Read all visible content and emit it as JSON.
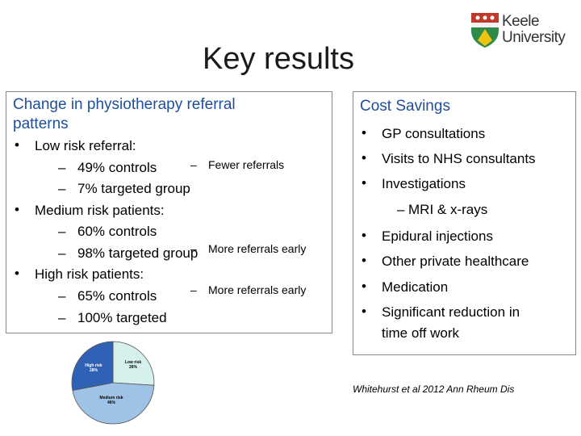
{
  "slide": {
    "title": "Key results",
    "logo": {
      "line1": "Keele",
      "line2": "University"
    }
  },
  "left_panel": {
    "heading_line1": "Change in physiotherapy referral",
    "heading_line2": "patterns",
    "items": [
      {
        "bullet": "•",
        "text": "Low risk referral:"
      },
      {
        "dash": "–",
        "text": "49% controls"
      },
      {
        "dash": "–",
        "text": "7% targeted group"
      },
      {
        "bullet": "•",
        "text": "Medium risk patients:"
      },
      {
        "dash": "–",
        "text": "60% controls"
      },
      {
        "dash": "–",
        "text": "98% targeted group"
      },
      {
        "bullet": "•",
        "text": "High risk patients:"
      },
      {
        "dash": "–",
        "text": "65% controls"
      },
      {
        "dash": "–",
        "text": "100% targeted"
      }
    ],
    "notes": [
      {
        "dash": "–",
        "text": "Fewer referrals"
      },
      {
        "dash": "–",
        "text": "More referrals early"
      },
      {
        "dash": "–",
        "text": "More referrals early"
      }
    ]
  },
  "right_panel": {
    "heading": "Cost Savings",
    "items": [
      {
        "bullet": "•",
        "text": "GP consultations"
      },
      {
        "bullet": "•",
        "text": "Visits to NHS consultants"
      },
      {
        "bullet": "•",
        "text": "Investigations"
      },
      {
        "dash": "–",
        "text": "MRI & x-rays"
      },
      {
        "bullet": "•",
        "text": "Epidural injections"
      },
      {
        "bullet": "•",
        "text": "Other private healthcare"
      },
      {
        "bullet": "•",
        "text": "Medication"
      },
      {
        "bullet": "•",
        "text": "Significant reduction in"
      },
      {
        "text": "time off work"
      }
    ]
  },
  "citation": "Whitehurst et al 2012 Ann Rheum Dis",
  "chart_data": {
    "type": "pie",
    "slices": [
      {
        "label": "Low risk",
        "pct_label": "26%",
        "value": 26,
        "color": "#d6f0ee"
      },
      {
        "label": "Medium risk",
        "pct_label": "46%",
        "value": 46,
        "color": "#9fc3e6"
      },
      {
        "label": "High risk",
        "pct_label": "28%",
        "value": 28,
        "color": "#2f62b5"
      }
    ]
  },
  "colors": {
    "heading": "#1f4e9c",
    "border": "#888888"
  }
}
